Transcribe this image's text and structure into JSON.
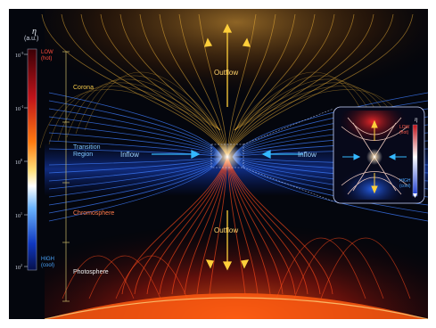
{
  "colorbar": {
    "symbol": "η",
    "units": "(a.u.)",
    "ticks": [
      {
        "base": "10",
        "exp": "-3"
      },
      {
        "base": "10",
        "exp": "-1"
      },
      {
        "base": "10",
        "exp": "0"
      },
      {
        "base": "10",
        "exp": "1"
      },
      {
        "base": "10",
        "exp": "2"
      }
    ],
    "low_label": "LOW",
    "low_note": "(hot)",
    "high_label": "HIGH",
    "high_note": "(cool)",
    "colors": [
      "#2a0005",
      "#c0131a",
      "#ff6a00",
      "#ffd03a",
      "#ffffff",
      "#3a9cff",
      "#0a2a9e",
      "#050b3a"
    ]
  },
  "regions": {
    "corona": "Corona",
    "transition_line1": "Transition",
    "transition_line2": "Region",
    "chromosphere": "Chromosphere",
    "photosphere": "Photosphere"
  },
  "flows": {
    "outflow_top": "Outflow",
    "outflow_bottom": "Outflow",
    "inflow_left": "Inflow",
    "inflow_right": "Inflow"
  },
  "inset": {
    "symbol": "η",
    "low_label": "LOW",
    "low_note": "(hot)",
    "high_label": "HIGH",
    "high_note": "(cool)"
  },
  "style": {
    "corona_color": "#f2b63a",
    "inflow_color": "#3f7dff",
    "chromosphere_color": "#ff4a1a",
    "arrow_gold": "#ffcf3a",
    "arrow_cyan": "#34b8ff"
  }
}
